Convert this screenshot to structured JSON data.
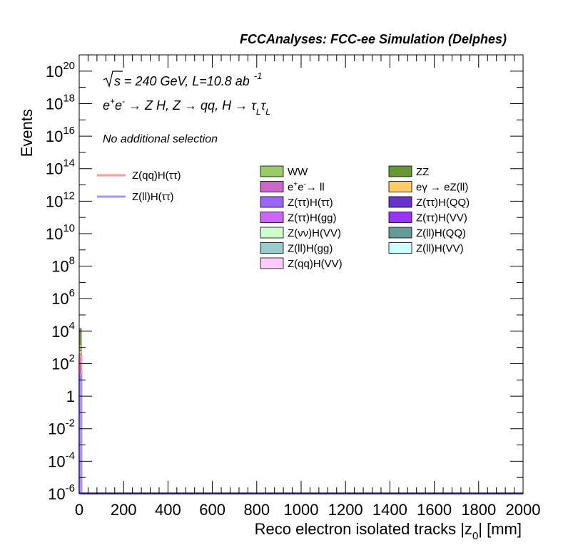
{
  "chart_data": {
    "type": "histogram",
    "title": "FCCAnalyses: FCC-ee Simulation (Delphes)",
    "xlabel": "Reco electron isolated tracks |z",
    "xlabel_sub": "0",
    "xlabel_tail": "| [mm]",
    "ylabel": "Events",
    "xlim": [
      0,
      2000
    ],
    "ylim": [
      1e-06,
      1e+21
    ],
    "ylog": true,
    "grid": false,
    "x_ticks": [
      "0",
      "200",
      "400",
      "600",
      "800",
      "1000",
      "1200",
      "1400",
      "1600",
      "1800",
      "2000"
    ],
    "y_ticks": [
      {
        "base": "10",
        "exp": "-6"
      },
      {
        "base": "10",
        "exp": "-4"
      },
      {
        "base": "10",
        "exp": "-2"
      },
      {
        "base": "1",
        "exp": ""
      },
      {
        "base": "10",
        "exp": "2"
      },
      {
        "base": "10",
        "exp": "4"
      },
      {
        "base": "10",
        "exp": "6"
      },
      {
        "base": "10",
        "exp": "8"
      },
      {
        "base": "10",
        "exp": "10"
      },
      {
        "base": "10",
        "exp": "12"
      },
      {
        "base": "10",
        "exp": "14"
      },
      {
        "base": "10",
        "exp": "16"
      },
      {
        "base": "10",
        "exp": "18"
      },
      {
        "base": "10",
        "exp": "20"
      }
    ],
    "annotations": {
      "sqrt": "s",
      "energy": " = 240 GeV, L=10.8 ab",
      "lumi_exp": "-1",
      "process_pre": "e",
      "process_sup1": "+",
      "process_mid": "e",
      "process_sup2": "-",
      "process_rest": " → Z H, Z  → qq, H  → τ",
      "process_sub1": "L",
      "process_tau2": "τ",
      "process_sub2": "L",
      "selection": "No additional selection"
    },
    "stack": [
      {
        "name": "Z(qq)H(VV)",
        "color": "#ffccff",
        "bins": [
          [
            0,
            10,
            1e-06
          ]
        ]
      },
      {
        "name": "Z(ll)H(VV)",
        "color": "#ccffff",
        "bins": [
          [
            0,
            10,
            1e-06
          ]
        ]
      },
      {
        "name": "Z(ll)H(gg)",
        "color": "#99cccc",
        "bins": [
          [
            0,
            10,
            1e-06
          ]
        ]
      },
      {
        "name": "Z(ll)H(QQ)",
        "color": "#669999",
        "bins": [
          [
            0,
            10,
            1e-06
          ]
        ]
      },
      {
        "name": "Z(νν)H(VV)",
        "color": "#ccffcc",
        "bins": [
          [
            0,
            10,
            1e-06
          ]
        ]
      },
      {
        "name": "Z(ττ)H(VV)",
        "color": "#9933ff",
        "bins": [
          [
            0,
            10,
            1e-06
          ]
        ]
      },
      {
        "name": "Z(ττ)H(gg)",
        "color": "#cc66ff",
        "bins": [
          [
            0,
            10,
            10
          ]
        ]
      },
      {
        "name": "Z(ττ)H(QQ)",
        "color": "#6633cc",
        "bins": [
          [
            0,
            10,
            100
          ]
        ]
      },
      {
        "name": "Z(ττ)H(ττ)",
        "color": "#9966ff",
        "bins": [
          [
            0,
            10,
            400
          ]
        ]
      },
      {
        "name": "eγ → eZ(ll)",
        "color": "#ffcc66",
        "bins": [
          [
            0,
            10,
            600
          ]
        ]
      },
      {
        "name": "e⁺e⁻→ ll",
        "color": "#cc66cc",
        "bins": [
          [
            0,
            10,
            700
          ]
        ]
      },
      {
        "name": "WW",
        "color": "#99cc66",
        "bins": [
          [
            0,
            10,
            1500
          ]
        ]
      },
      {
        "name": "ZZ",
        "color": "#669933",
        "bins": [
          [
            0,
            10,
            15000
          ]
        ]
      }
    ],
    "signals": [
      {
        "name": "Z(qq)H(ττ)",
        "color": "#ff9999",
        "bins": [
          [
            0,
            10,
            300
          ]
        ]
      },
      {
        "name": "Z(ll)H(ττ)",
        "color": "#9999ff",
        "bins": [
          [
            0,
            10,
            20
          ]
        ]
      }
    ],
    "legend_bkg": [
      {
        "label": "WW",
        "color": "#99cc66"
      },
      {
        "label": "ZZ",
        "color": "#669933"
      },
      {
        "label_pre": "e",
        "sup1": "+",
        "label_mid": "e",
        "sup2": "-",
        "label_rest": "→ ll",
        "color": "#cc66cc"
      },
      {
        "label": "eγ → eZ(ll)",
        "color": "#ffcc66"
      },
      {
        "label": "Z(ττ)H(ττ)",
        "color": "#9966ff"
      },
      {
        "label": "Z(ττ)H(QQ)",
        "color": "#6633cc"
      },
      {
        "label": "Z(ττ)H(gg)",
        "color": "#cc66ff"
      },
      {
        "label": "Z(ττ)H(VV)",
        "color": "#9933ff"
      },
      {
        "label": "Z(νν)H(VV)",
        "color": "#ccffcc"
      },
      {
        "label": "Z(ll)H(QQ)",
        "color": "#669999"
      },
      {
        "label": "Z(ll)H(gg)",
        "color": "#99cccc"
      },
      {
        "label": "Z(ll)H(VV)",
        "color": "#ccffff"
      },
      {
        "label": "Z(qq)H(VV)",
        "color": "#ffccff"
      }
    ],
    "legend_sig": [
      {
        "label": "Z(qq)H(ττ)",
        "color": "#ff9999"
      },
      {
        "label": "Z(ll)H(ττ)",
        "color": "#9999ff"
      }
    ]
  }
}
